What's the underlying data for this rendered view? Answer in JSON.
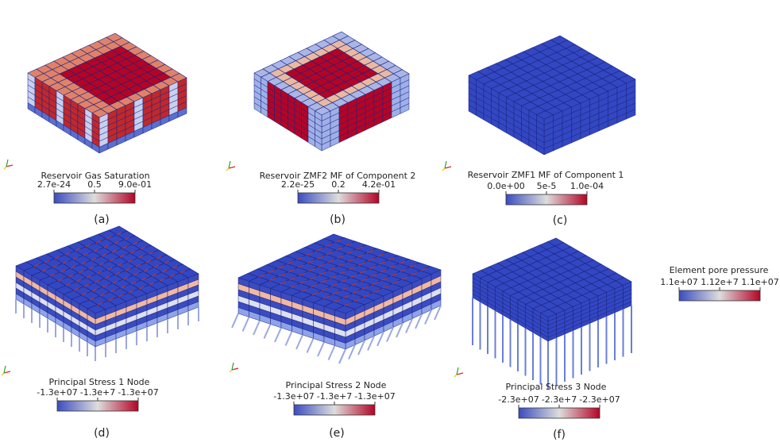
{
  "panels": [
    {
      "title": "Reservoir Gas Saturation",
      "ticks": [
        "2.7e-24",
        "0.5",
        "9.0e-01"
      ],
      "caption": "(a)"
    },
    {
      "title": "Reservoir ZMF2 MF of Component 2",
      "ticks": [
        "2.2e-25",
        "0.2",
        "4.2e-01"
      ],
      "caption": "(b)"
    },
    {
      "title": "Reservoir ZMF1 MF of Component 1",
      "ticks": [
        "0.0e+00",
        "5e-5",
        "1.0e-04"
      ],
      "caption": "(c)"
    },
    {
      "title": "Principal Stress 1 Node",
      "ticks": [
        "-1.3e+07",
        "-1.3e+7",
        "-1.3e+07"
      ],
      "caption": "(d)"
    },
    {
      "title": "Principal Stress 2 Node",
      "ticks": [
        "-1.3e+07",
        "-1.3e+7",
        "-1.3e+07"
      ],
      "caption": "(e)"
    },
    {
      "title": "Principal Stress 3 Node",
      "ticks": [
        "-2.3e+07",
        "-2.3e+7",
        "-2.3e+07"
      ],
      "caption": "(f)"
    }
  ],
  "legend": {
    "title": "Element pore pressure",
    "ticks": [
      "1.1e+07",
      "1.12e+7",
      "1.1e+07"
    ]
  }
}
